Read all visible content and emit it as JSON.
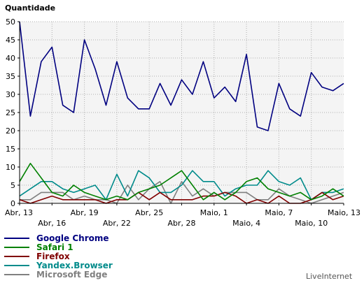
{
  "chart_data": {
    "type": "line",
    "ylabel": "Quantidade",
    "ylim": [
      0,
      50
    ],
    "yticks": [
      0,
      5,
      10,
      15,
      20,
      25,
      30,
      35,
      40,
      45,
      50
    ],
    "grid": true,
    "legend_position": "bottom-left",
    "x": [
      "Abr, 13",
      "Abr, 14",
      "Abr, 15",
      "Abr, 16",
      "Abr, 17",
      "Abr, 18",
      "Abr, 19",
      "Abr, 20",
      "Abr, 21",
      "Abr, 22",
      "Abr, 23",
      "Abr, 24",
      "Abr, 25",
      "Abr, 26",
      "Abr, 27",
      "Abr, 28",
      "Abr, 29",
      "Abr, 30",
      "Maio, 1",
      "Maio, 2",
      "Maio, 3",
      "Maio, 4",
      "Maio, 5",
      "Maio, 6",
      "Maio, 7",
      "Maio, 8",
      "Maio, 9",
      "Maio, 10",
      "Maio, 11",
      "Maio, 12",
      "Maio, 13"
    ],
    "xtick_labels": [
      {
        "index": 0,
        "label": "Abr, 13",
        "row": 0
      },
      {
        "index": 3,
        "label": "Abr, 16",
        "row": 1
      },
      {
        "index": 6,
        "label": "Abr, 19",
        "row": 0
      },
      {
        "index": 9,
        "label": "Abr, 22",
        "row": 1
      },
      {
        "index": 12,
        "label": "Abr, 25",
        "row": 0
      },
      {
        "index": 15,
        "label": "Abr, 28",
        "row": 1
      },
      {
        "index": 18,
        "label": "Maio, 1",
        "row": 0
      },
      {
        "index": 21,
        "label": "Maio, 4",
        "row": 1
      },
      {
        "index": 24,
        "label": "Maio, 7",
        "row": 0
      },
      {
        "index": 27,
        "label": "Maio, 10",
        "row": 1
      },
      {
        "index": 30,
        "label": "Maio, 13",
        "row": 0
      }
    ],
    "series": [
      {
        "name": "Google Chrome",
        "color": "#000080",
        "values": [
          50,
          24,
          39,
          43,
          27,
          25,
          45,
          37,
          27,
          39,
          29,
          26,
          26,
          33,
          27,
          34,
          30,
          39,
          29,
          32,
          28,
          41,
          21,
          20,
          33,
          26,
          24,
          36,
          32,
          31,
          33
        ]
      },
      {
        "name": "Safari 1",
        "color": "#008000",
        "values": [
          6,
          11,
          7,
          3,
          2,
          5,
          3,
          2,
          1,
          2,
          1,
          3,
          4,
          5,
          7,
          9,
          5,
          1,
          3,
          1,
          3,
          6,
          7,
          4,
          3,
          2,
          3,
          1,
          2,
          4,
          2
        ]
      },
      {
        "name": "Firefox",
        "color": "#800000",
        "values": [
          1,
          0,
          1,
          2,
          1,
          1,
          1,
          1,
          0,
          1,
          1,
          3,
          1,
          3,
          1,
          1,
          1,
          2,
          2,
          3,
          2,
          0,
          1,
          0,
          2,
          0,
          0,
          1,
          3,
          1,
          2
        ]
      },
      {
        "name": "Yandex.Browser",
        "color": "#008b8b",
        "values": [
          2,
          4,
          6,
          6,
          4,
          3,
          4,
          5,
          1,
          8,
          2,
          9,
          7,
          3,
          3,
          5,
          9,
          6,
          6,
          2,
          4,
          5,
          5,
          9,
          6,
          5,
          7,
          1,
          3,
          3,
          4
        ]
      },
      {
        "name": "Microsoft Edge",
        "color": "#808080",
        "values": [
          1,
          1,
          3,
          3,
          3,
          1,
          2,
          1,
          1,
          0,
          5,
          1,
          4,
          6,
          0,
          6,
          2,
          4,
          2,
          3,
          3,
          3,
          1,
          1,
          4,
          2,
          1,
          0,
          1,
          2,
          3
        ]
      }
    ]
  },
  "branding": "LiveInternet"
}
